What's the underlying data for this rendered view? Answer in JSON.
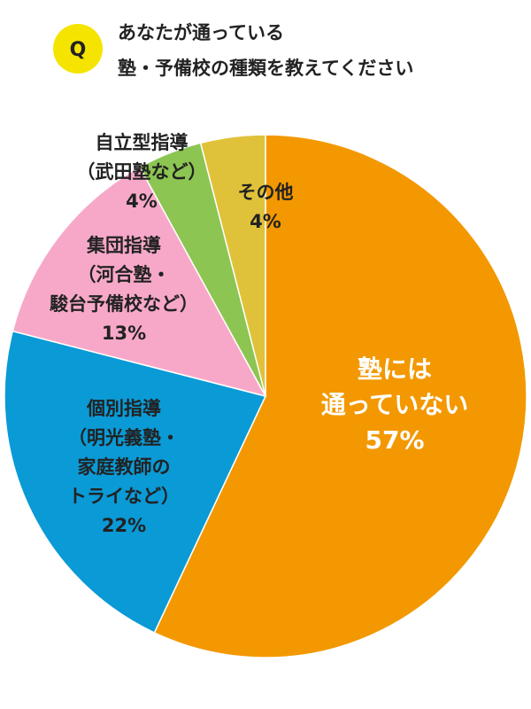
{
  "chart_data": {
    "type": "pie",
    "badge": "Q",
    "title": [
      "あなたが通っている",
      "塾・予備校の種類を教えてください"
    ],
    "categories": [
      [
        "塾には",
        "通っていない"
      ],
      [
        "個別指導",
        "（明光義塾・",
        "家庭教師の",
        "トライなど）"
      ],
      [
        "集団指導",
        "（河合塾・",
        "駿台予備校など）"
      ],
      [
        "自立型指導",
        "（武田塾など）"
      ],
      [
        "その他"
      ]
    ],
    "values": [
      57,
      22,
      13,
      4,
      4
    ],
    "value_labels": [
      "57%",
      "22%",
      "13%",
      "4%",
      "4%"
    ],
    "colors": [
      "#f39800",
      "#0a9ad6",
      "#f7a8c8",
      "#8cc552",
      "#e0c23a"
    ]
  }
}
